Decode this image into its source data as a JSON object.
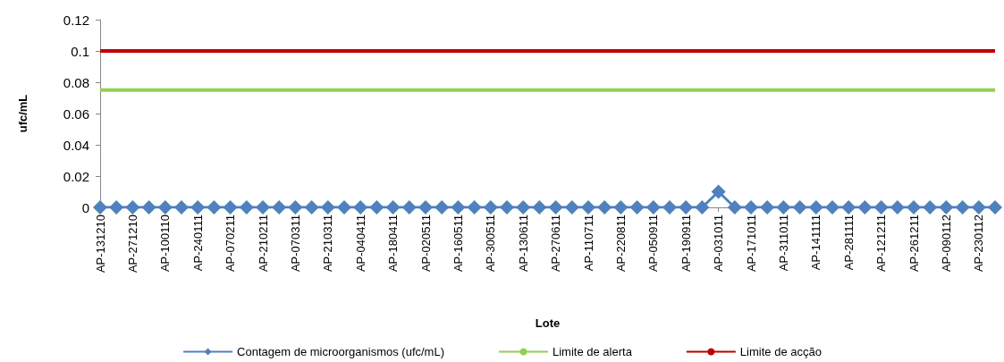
{
  "chart_data": {
    "type": "line",
    "xlabel": "Lote",
    "ylabel": "ufc/mL",
    "categories": [
      "AP-131210",
      null,
      "AP-271210",
      null,
      "AP-100110",
      null,
      "AP-240111",
      null,
      "AP-070211",
      null,
      "AP-210211",
      null,
      "AP-070311",
      null,
      "AP-210311",
      null,
      "AP-040411",
      null,
      "AP-180411",
      null,
      "AP-020511",
      null,
      "AP-160511",
      null,
      "AP-300511",
      null,
      "AP-130611",
      null,
      "AP-270611",
      null,
      "AP-110711",
      null,
      "AP-220811",
      null,
      "AP-050911",
      null,
      "AP-190911",
      null,
      "AP-031011",
      null,
      "AP-171011",
      null,
      "AP-311011",
      null,
      "AP-141111",
      null,
      "AP-281111",
      null,
      "AP-121211",
      null,
      "AP-261211",
      null,
      "AP-090112",
      null,
      "AP-230112",
      null
    ],
    "series": [
      {
        "name": "Contagem de microorganismos (ufc/mL)",
        "color": "#4f81bd",
        "marker": "diamond",
        "values": [
          0,
          0,
          0,
          0,
          0,
          0,
          0,
          0,
          0,
          0,
          0,
          0,
          0,
          0,
          0,
          0,
          0,
          0,
          0,
          0,
          0,
          0,
          0,
          0,
          0,
          0,
          0,
          0,
          0,
          0,
          0,
          0,
          0,
          0,
          0,
          0,
          0,
          0,
          0.01,
          0,
          0,
          0,
          0,
          0,
          0,
          0,
          0,
          0,
          0,
          0,
          0,
          0,
          0,
          0,
          0,
          0
        ]
      },
      {
        "name": "Limite de alerta",
        "color": "#92d050",
        "marker": "none",
        "values": [
          0.075,
          0.075,
          0.075,
          0.075,
          0.075,
          0.075,
          0.075,
          0.075,
          0.075,
          0.075,
          0.075,
          0.075,
          0.075,
          0.075,
          0.075,
          0.075,
          0.075,
          0.075,
          0.075,
          0.075,
          0.075,
          0.075,
          0.075,
          0.075,
          0.075,
          0.075,
          0.075,
          0.075,
          0.075,
          0.075,
          0.075,
          0.075,
          0.075,
          0.075,
          0.075,
          0.075,
          0.075,
          0.075,
          0.075,
          0.075,
          0.075,
          0.075,
          0.075,
          0.075,
          0.075,
          0.075,
          0.075,
          0.075,
          0.075,
          0.075,
          0.075,
          0.075,
          0.075,
          0.075,
          0.075,
          0.075
        ]
      },
      {
        "name": "Limite de acção",
        "color": "#c00000",
        "marker": "none",
        "values": [
          0.1,
          0.1,
          0.1,
          0.1,
          0.1,
          0.1,
          0.1,
          0.1,
          0.1,
          0.1,
          0.1,
          0.1,
          0.1,
          0.1,
          0.1,
          0.1,
          0.1,
          0.1,
          0.1,
          0.1,
          0.1,
          0.1,
          0.1,
          0.1,
          0.1,
          0.1,
          0.1,
          0.1,
          0.1,
          0.1,
          0.1,
          0.1,
          0.1,
          0.1,
          0.1,
          0.1,
          0.1,
          0.1,
          0.1,
          0.1,
          0.1,
          0.1,
          0.1,
          0.1,
          0.1,
          0.1,
          0.1,
          0.1,
          0.1,
          0.1,
          0.1,
          0.1,
          0.1,
          0.1,
          0.1,
          0.1
        ]
      }
    ],
    "ylim": [
      0,
      0.12
    ],
    "yticks": [
      0,
      0.02,
      0.04,
      0.06,
      0.08,
      0.1,
      0.12
    ],
    "grid": false,
    "legend": "bottom"
  }
}
